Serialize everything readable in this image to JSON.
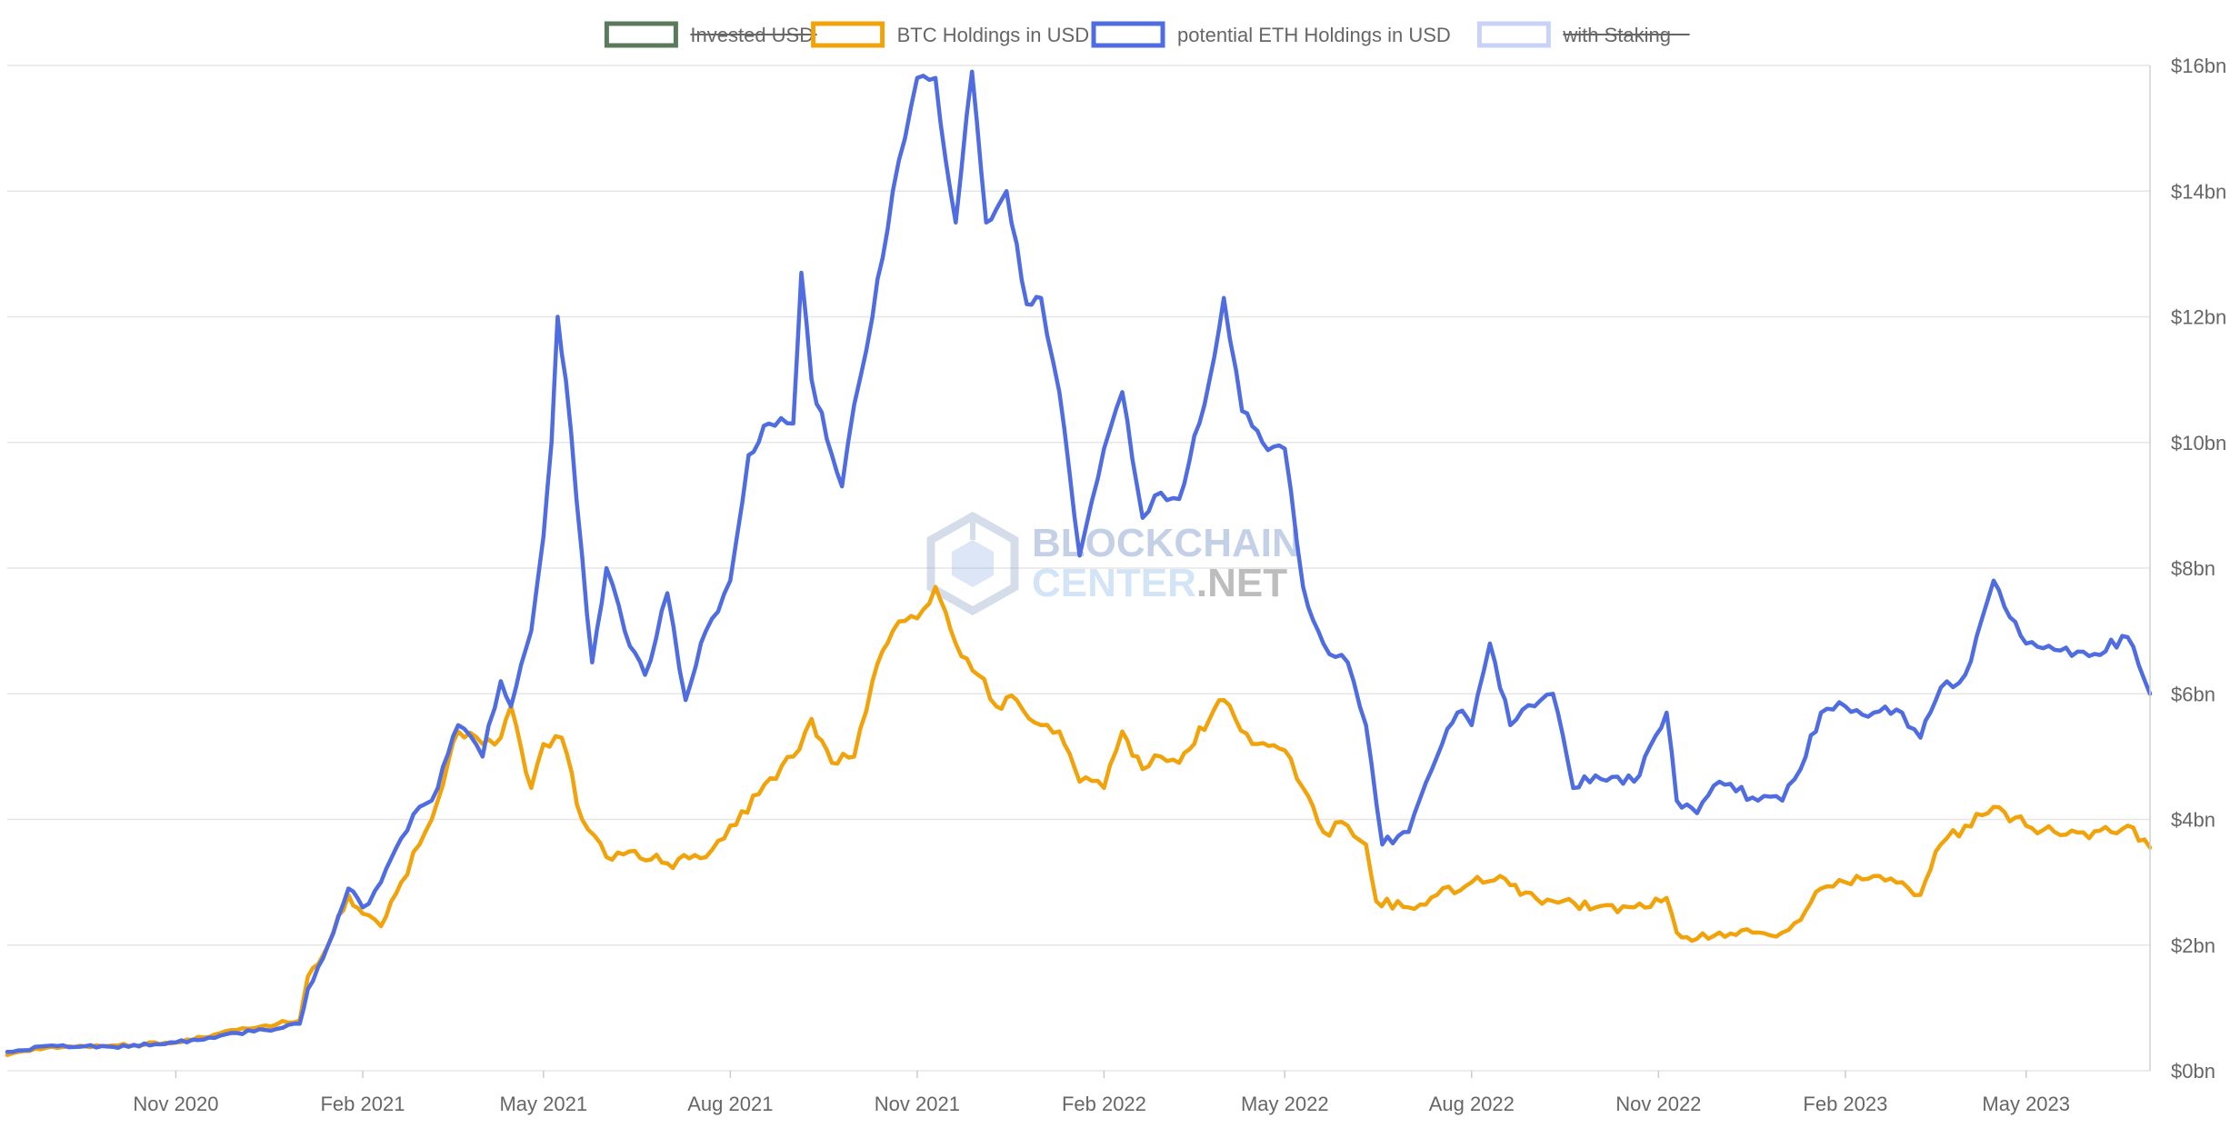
{
  "chart_data": {
    "type": "line",
    "x_range": [
      "2020-08-10",
      "2023-07-01"
    ],
    "ylim": [
      0,
      16
    ],
    "y_unit": "bn USD",
    "y_ticks": [
      "$0bn",
      "$2bn",
      "$4bn",
      "$6bn",
      "$8bn",
      "$10bn",
      "$12bn",
      "$14bn",
      "$16bn"
    ],
    "x_ticks": [
      {
        "label": "Nov 2020",
        "date": "2020-11-01"
      },
      {
        "label": "Feb 2021",
        "date": "2021-02-01"
      },
      {
        "label": "May 2021",
        "date": "2021-05-01"
      },
      {
        "label": "Aug 2021",
        "date": "2021-08-01"
      },
      {
        "label": "Nov 2021",
        "date": "2021-11-01"
      },
      {
        "label": "Feb 2022",
        "date": "2022-02-01"
      },
      {
        "label": "May 2022",
        "date": "2022-05-01"
      },
      {
        "label": "Aug 2022",
        "date": "2022-08-01"
      },
      {
        "label": "Nov 2022",
        "date": "2022-11-01"
      },
      {
        "label": "Feb 2023",
        "date": "2023-02-01"
      },
      {
        "label": "May 2023",
        "date": "2023-05-01"
      }
    ],
    "grid": true,
    "legend_position": "top-center",
    "legend": [
      {
        "name": "Invested USD",
        "color": "#5b7a5b",
        "hidden": true
      },
      {
        "name": "BTC Holdings in USD",
        "color": "#f0a30a",
        "hidden": false
      },
      {
        "name": "potential ETH Holdings in USD",
        "color": "#4f6de0",
        "hidden": false
      },
      {
        "name": "with Staking",
        "color": "#c9d3f7",
        "hidden": true
      }
    ],
    "series": [
      {
        "name": "BTC Holdings in USD",
        "color": "#f0a30a",
        "points": [
          [
            "2020-08-10",
            0.25
          ],
          [
            "2020-09-01",
            0.38
          ],
          [
            "2020-10-01",
            0.4
          ],
          [
            "2020-11-01",
            0.45
          ],
          [
            "2020-12-01",
            0.65
          ],
          [
            "2020-12-15",
            0.72
          ],
          [
            "2021-01-01",
            0.8
          ],
          [
            "2021-01-05",
            1.5
          ],
          [
            "2021-01-15",
            2.0
          ],
          [
            "2021-01-25",
            2.8
          ],
          [
            "2021-02-01",
            2.5
          ],
          [
            "2021-02-10",
            2.3
          ],
          [
            "2021-02-20",
            3.0
          ],
          [
            "2021-03-01",
            3.6
          ],
          [
            "2021-03-10",
            4.3
          ],
          [
            "2021-03-20",
            5.4
          ],
          [
            "2021-04-01",
            5.2
          ],
          [
            "2021-04-10",
            5.3
          ],
          [
            "2021-04-15",
            5.8
          ],
          [
            "2021-04-25",
            4.5
          ],
          [
            "2021-05-01",
            5.2
          ],
          [
            "2021-05-10",
            5.3
          ],
          [
            "2021-05-20",
            4.0
          ],
          [
            "2021-06-01",
            3.4
          ],
          [
            "2021-06-15",
            3.5
          ],
          [
            "2021-07-01",
            3.3
          ],
          [
            "2021-07-20",
            3.4
          ],
          [
            "2021-08-01",
            3.9
          ],
          [
            "2021-08-15",
            4.4
          ],
          [
            "2021-09-01",
            5.0
          ],
          [
            "2021-09-10",
            5.6
          ],
          [
            "2021-09-20",
            4.9
          ],
          [
            "2021-10-01",
            5.0
          ],
          [
            "2021-10-10",
            6.2
          ],
          [
            "2021-10-20",
            7.0
          ],
          [
            "2021-11-01",
            7.2
          ],
          [
            "2021-11-10",
            7.7
          ],
          [
            "2021-11-20",
            6.8
          ],
          [
            "2021-12-01",
            6.3
          ],
          [
            "2021-12-10",
            5.8
          ],
          [
            "2021-12-20",
            5.9
          ],
          [
            "2022-01-01",
            5.5
          ],
          [
            "2022-01-10",
            5.4
          ],
          [
            "2022-01-20",
            4.6
          ],
          [
            "2022-02-01",
            4.5
          ],
          [
            "2022-02-10",
            5.4
          ],
          [
            "2022-02-20",
            4.8
          ],
          [
            "2022-03-01",
            5.0
          ],
          [
            "2022-03-10",
            4.9
          ],
          [
            "2022-03-25",
            5.6
          ],
          [
            "2022-04-01",
            5.9
          ],
          [
            "2022-04-15",
            5.2
          ],
          [
            "2022-05-01",
            5.1
          ],
          [
            "2022-05-10",
            4.5
          ],
          [
            "2022-05-20",
            3.8
          ],
          [
            "2022-06-01",
            3.9
          ],
          [
            "2022-06-10",
            3.6
          ],
          [
            "2022-06-15",
            2.7
          ],
          [
            "2022-07-01",
            2.6
          ],
          [
            "2022-07-15",
            2.8
          ],
          [
            "2022-08-01",
            3.0
          ],
          [
            "2022-08-15",
            3.1
          ],
          [
            "2022-08-25",
            2.8
          ],
          [
            "2022-09-10",
            2.7
          ],
          [
            "2022-10-01",
            2.6
          ],
          [
            "2022-10-20",
            2.6
          ],
          [
            "2022-11-05",
            2.75
          ],
          [
            "2022-11-10",
            2.2
          ],
          [
            "2022-11-20",
            2.1
          ],
          [
            "2022-12-01",
            2.2
          ],
          [
            "2022-12-20",
            2.2
          ],
          [
            "2023-01-01",
            2.2
          ],
          [
            "2023-01-10",
            2.4
          ],
          [
            "2023-01-20",
            2.9
          ],
          [
            "2023-02-01",
            3.0
          ],
          [
            "2023-02-15",
            3.1
          ],
          [
            "2023-03-01",
            3.0
          ],
          [
            "2023-03-10",
            2.8
          ],
          [
            "2023-03-20",
            3.6
          ],
          [
            "2023-04-01",
            3.9
          ],
          [
            "2023-04-15",
            4.2
          ],
          [
            "2023-05-01",
            3.9
          ],
          [
            "2023-05-15",
            3.8
          ],
          [
            "2023-06-01",
            3.7
          ],
          [
            "2023-06-20",
            3.9
          ],
          [
            "2023-07-01",
            3.55
          ]
        ]
      },
      {
        "name": "potential ETH Holdings in USD",
        "color": "#4f6de0",
        "points": [
          [
            "2020-08-10",
            0.3
          ],
          [
            "2020-09-01",
            0.4
          ],
          [
            "2020-10-01",
            0.38
          ],
          [
            "2020-11-01",
            0.45
          ],
          [
            "2020-12-01",
            0.6
          ],
          [
            "2020-12-15",
            0.65
          ],
          [
            "2021-01-01",
            0.75
          ],
          [
            "2021-01-05",
            1.3
          ],
          [
            "2021-01-15",
            2.0
          ],
          [
            "2021-01-25",
            2.9
          ],
          [
            "2021-02-01",
            2.6
          ],
          [
            "2021-02-10",
            3.0
          ],
          [
            "2021-02-20",
            3.7
          ],
          [
            "2021-03-01",
            4.2
          ],
          [
            "2021-03-10",
            4.5
          ],
          [
            "2021-03-20",
            5.5
          ],
          [
            "2021-04-01",
            5.0
          ],
          [
            "2021-04-10",
            6.2
          ],
          [
            "2021-04-15",
            5.8
          ],
          [
            "2021-04-25",
            7.0
          ],
          [
            "2021-05-01",
            8.5
          ],
          [
            "2021-05-05",
            10.0
          ],
          [
            "2021-05-08",
            12.0
          ],
          [
            "2021-05-12",
            11.0
          ],
          [
            "2021-05-20",
            8.2
          ],
          [
            "2021-05-25",
            6.5
          ],
          [
            "2021-06-01",
            8.0
          ],
          [
            "2021-06-10",
            7.0
          ],
          [
            "2021-06-20",
            6.3
          ],
          [
            "2021-07-01",
            7.6
          ],
          [
            "2021-07-10",
            5.9
          ],
          [
            "2021-07-20",
            7.0
          ],
          [
            "2021-08-01",
            7.8
          ],
          [
            "2021-08-10",
            9.8
          ],
          [
            "2021-08-20",
            10.3
          ],
          [
            "2021-09-01",
            10.3
          ],
          [
            "2021-09-05",
            12.7
          ],
          [
            "2021-09-10",
            11.0
          ],
          [
            "2021-09-20",
            9.8
          ],
          [
            "2021-09-25",
            9.3
          ],
          [
            "2021-10-01",
            10.6
          ],
          [
            "2021-10-10",
            12.0
          ],
          [
            "2021-10-20",
            14.0
          ],
          [
            "2021-11-01",
            15.8
          ],
          [
            "2021-11-10",
            15.8
          ],
          [
            "2021-11-15",
            14.5
          ],
          [
            "2021-11-20",
            13.5
          ],
          [
            "2021-11-28",
            15.9
          ],
          [
            "2021-12-05",
            13.5
          ],
          [
            "2021-12-15",
            14.0
          ],
          [
            "2021-12-25",
            12.2
          ],
          [
            "2022-01-01",
            12.3
          ],
          [
            "2022-01-10",
            10.8
          ],
          [
            "2022-01-20",
            8.2
          ],
          [
            "2022-02-01",
            9.9
          ],
          [
            "2022-02-10",
            10.8
          ],
          [
            "2022-02-20",
            8.8
          ],
          [
            "2022-03-01",
            9.2
          ],
          [
            "2022-03-10",
            9.1
          ],
          [
            "2022-03-25",
            11.0
          ],
          [
            "2022-04-01",
            12.3
          ],
          [
            "2022-04-10",
            10.5
          ],
          [
            "2022-04-20",
            10.0
          ],
          [
            "2022-05-01",
            9.9
          ],
          [
            "2022-05-10",
            7.7
          ],
          [
            "2022-05-20",
            6.8
          ],
          [
            "2022-06-01",
            6.5
          ],
          [
            "2022-06-10",
            5.5
          ],
          [
            "2022-06-18",
            3.6
          ],
          [
            "2022-07-01",
            3.8
          ],
          [
            "2022-07-15",
            5.0
          ],
          [
            "2022-07-25",
            5.7
          ],
          [
            "2022-08-01",
            5.5
          ],
          [
            "2022-08-10",
            6.8
          ],
          [
            "2022-08-20",
            5.5
          ],
          [
            "2022-09-01",
            5.8
          ],
          [
            "2022-09-10",
            6.0
          ],
          [
            "2022-09-20",
            4.5
          ],
          [
            "2022-10-01",
            4.7
          ],
          [
            "2022-10-20",
            4.6
          ],
          [
            "2022-11-05",
            5.7
          ],
          [
            "2022-11-10",
            4.3
          ],
          [
            "2022-11-20",
            4.1
          ],
          [
            "2022-12-01",
            4.6
          ],
          [
            "2022-12-20",
            4.3
          ],
          [
            "2023-01-01",
            4.3
          ],
          [
            "2023-01-10",
            4.8
          ],
          [
            "2023-01-20",
            5.7
          ],
          [
            "2023-02-01",
            5.8
          ],
          [
            "2023-02-15",
            5.7
          ],
          [
            "2023-03-01",
            5.7
          ],
          [
            "2023-03-10",
            5.3
          ],
          [
            "2023-03-20",
            6.1
          ],
          [
            "2023-04-01",
            6.3
          ],
          [
            "2023-04-15",
            7.8
          ],
          [
            "2023-05-01",
            6.8
          ],
          [
            "2023-05-15",
            6.7
          ],
          [
            "2023-06-01",
            6.6
          ],
          [
            "2023-06-20",
            6.9
          ],
          [
            "2023-07-01",
            6.0
          ]
        ]
      }
    ],
    "watermark": {
      "line1": "BLOCKCHAIN",
      "line2a": "CENTER",
      "line2b": ".NET"
    }
  }
}
